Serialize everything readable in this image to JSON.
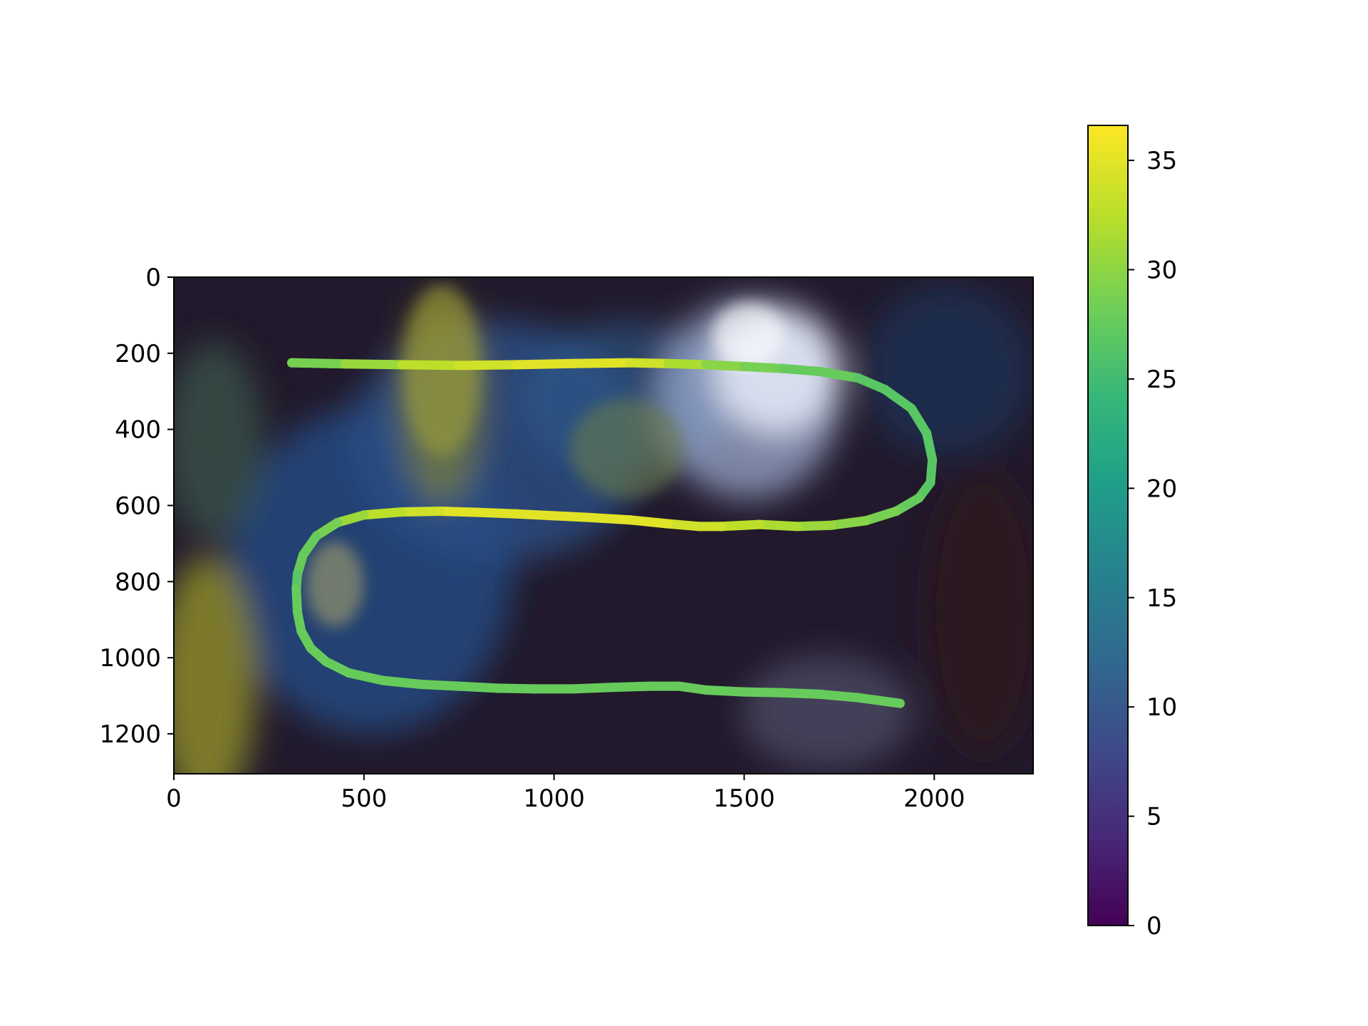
{
  "chart_data": [
    {
      "type": "scatter",
      "description_kind": "trajectory overlaid on image, colored by value",
      "title": "",
      "xlabel": "",
      "ylabel": "",
      "xlim": [
        0,
        2260
      ],
      "ylim": [
        1305,
        0
      ],
      "y_inverted": true,
      "grid": false,
      "xticks": [
        0,
        500,
        1000,
        1500,
        2000
      ],
      "yticks": [
        0,
        200,
        400,
        600,
        800,
        1000,
        1200
      ],
      "xtick_labels": [
        "0",
        "500",
        "1000",
        "1500",
        "2000"
      ],
      "ytick_labels": [
        "0",
        "200",
        "400",
        "600",
        "800",
        "1000",
        "1200"
      ],
      "background": "image",
      "series": [
        {
          "x": [
            310,
            450,
            600,
            750,
            900,
            1050,
            1200,
            1300,
            1400,
            1500,
            1600,
            1700,
            1800,
            1870,
            1940,
            1980,
            1995,
            1990,
            1960,
            1900,
            1820,
            1730,
            1640,
            1540,
            1440,
            1380,
            1300,
            1200,
            1100,
            1000,
            900,
            800,
            700,
            600,
            500,
            430,
            375,
            340,
            325,
            322,
            325,
            335,
            360,
            400,
            460,
            550,
            650,
            750,
            850,
            950,
            1050,
            1150,
            1250,
            1330,
            1400,
            1500,
            1600,
            1700,
            1800,
            1910
          ],
          "y": [
            225,
            228,
            230,
            232,
            230,
            227,
            225,
            227,
            230,
            235,
            240,
            248,
            265,
            295,
            345,
            410,
            480,
            540,
            580,
            615,
            640,
            652,
            655,
            650,
            655,
            655,
            648,
            638,
            632,
            627,
            622,
            618,
            615,
            617,
            625,
            645,
            680,
            730,
            780,
            820,
            880,
            930,
            975,
            1010,
            1040,
            1060,
            1070,
            1075,
            1080,
            1082,
            1082,
            1078,
            1075,
            1075,
            1085,
            1090,
            1092,
            1096,
            1105,
            1120
          ],
          "c": [
            29,
            31,
            33,
            34,
            35,
            35,
            34,
            32,
            30,
            29,
            28,
            28,
            27,
            27,
            27,
            27,
            27,
            27,
            28,
            29,
            30,
            31,
            32,
            33,
            34,
            34,
            35,
            35,
            35,
            35,
            35,
            35,
            34,
            33,
            31,
            29,
            28,
            28,
            27,
            28,
            28,
            28,
            28,
            28,
            28,
            28,
            28,
            28,
            28,
            28,
            28,
            28,
            28,
            28,
            28,
            28,
            28,
            28,
            28,
            28
          ]
        }
      ],
      "colorbar": {
        "colormap": "viridis",
        "range": [
          0,
          36.6
        ],
        "ticks": [
          0,
          5,
          10,
          15,
          20,
          25,
          30,
          35
        ],
        "tick_labels": [
          "0",
          "5",
          "10",
          "15",
          "20",
          "25",
          "30",
          "35"
        ]
      },
      "colors": {
        "viridis_stops": [
          "#440154",
          "#482878",
          "#3e4a89",
          "#31688e",
          "#26828e",
          "#1f9e89",
          "#35b779",
          "#6ece58",
          "#b5de2b",
          "#fde725"
        ],
        "background_dark": "#1d1b2e",
        "background_blue": "#24457a",
        "background_yellow": "#8c8a2a",
        "background_white": "#cdd6ec"
      }
    }
  ]
}
